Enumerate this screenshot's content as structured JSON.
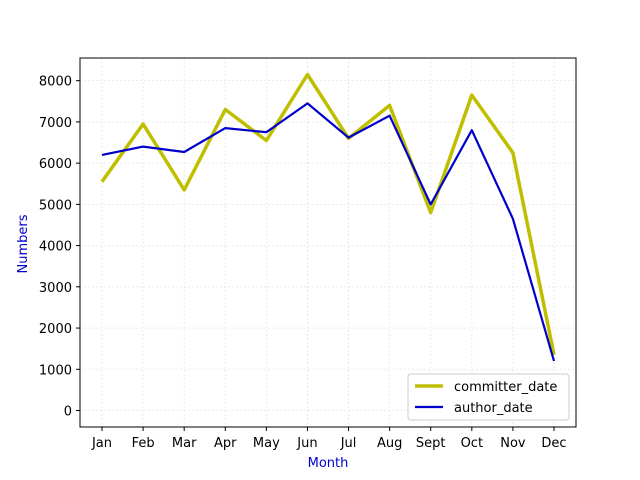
{
  "chart_data": {
    "type": "line",
    "xlabel": "Month",
    "ylabel": "Numbers",
    "categories": [
      "Jan",
      "Feb",
      "Mar",
      "Apr",
      "May",
      "Jun",
      "Jul",
      "Aug",
      "Sept",
      "Oct",
      "Nov",
      "Dec"
    ],
    "yticks": [
      "0",
      "1000",
      "2000",
      "3000",
      "4000",
      "5000",
      "6000",
      "7000",
      "8000"
    ],
    "ylim": [
      -400,
      8550
    ],
    "grid": true,
    "legend_position": "lower-right",
    "series": [
      {
        "name": "committer_date",
        "color": "#bfbf00",
        "values": [
          5550,
          6950,
          5350,
          7300,
          6550,
          8150,
          6600,
          7400,
          4800,
          7650,
          6250,
          1350
        ]
      },
      {
        "name": "author_date",
        "color": "#0000cc",
        "values": [
          6200,
          6400,
          6270,
          6850,
          6750,
          7450,
          6620,
          7150,
          5000,
          6800,
          4650,
          1200
        ]
      }
    ],
    "label_color": "#0000cc"
  }
}
